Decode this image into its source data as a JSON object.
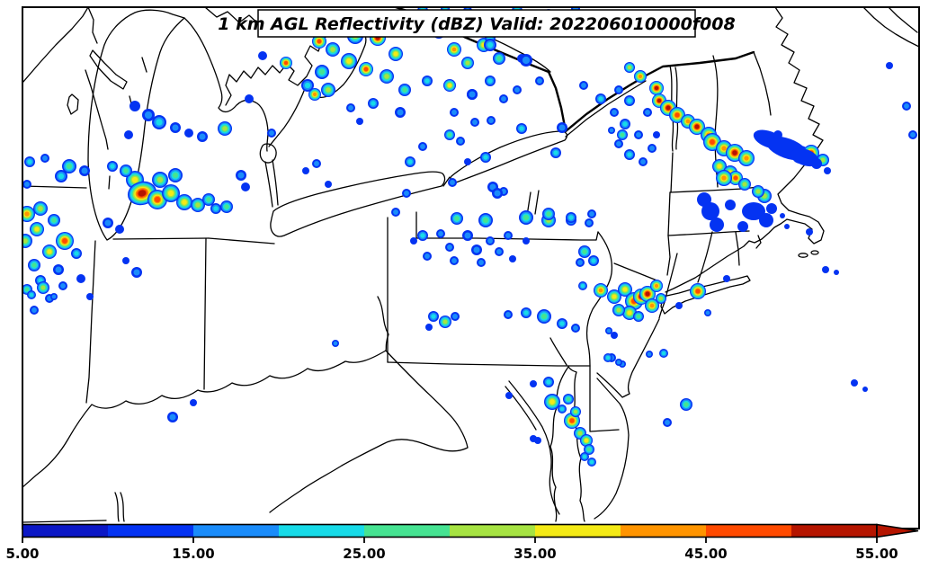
{
  "title": {
    "text": "1 km AGL Reflectivity (dBZ) Valid: 202206010000f008"
  },
  "colorbar": {
    "quantity": "Reflectivity",
    "unit": "dBZ",
    "range_min": 5,
    "range_max": 55,
    "extend_max_arrow": true,
    "segment_step": 5,
    "levels": [
      {
        "value": 5,
        "color": "#0b17c6"
      },
      {
        "value": 10,
        "color": "#0433f2"
      },
      {
        "value": 15,
        "color": "#1a8cfa"
      },
      {
        "value": 20,
        "color": "#17dbe8"
      },
      {
        "value": 25,
        "color": "#46e392"
      },
      {
        "value": 30,
        "color": "#a6e342"
      },
      {
        "value": 35,
        "color": "#f4ea16"
      },
      {
        "value": 40,
        "color": "#ff9400"
      },
      {
        "value": 45,
        "color": "#ff4a00"
      },
      {
        "value": 50,
        "color": "#b51500"
      }
    ],
    "tick_values": [
      5,
      15,
      25,
      35,
      45,
      55
    ],
    "tick_labels": [
      "5.00",
      "15.00",
      "25.00",
      "35.00",
      "45.00",
      "55.00"
    ]
  },
  "radar": {
    "cells_format": "x_px, y_px, radius_px, max_dbz, optional_x_stretch, optional_rotation_deg",
    "cells": [
      [
        33,
        180,
        6,
        20
      ],
      [
        50,
        176,
        5,
        15
      ],
      [
        77,
        185,
        8,
        25
      ],
      [
        94,
        190,
        6,
        15
      ],
      [
        68,
        196,
        7,
        20
      ],
      [
        30,
        205,
        5,
        15
      ],
      [
        30,
        238,
        9,
        42
      ],
      [
        45,
        232,
        8,
        30
      ],
      [
        60,
        245,
        7,
        25
      ],
      [
        41,
        255,
        8,
        35
      ],
      [
        28,
        268,
        8,
        30
      ],
      [
        72,
        268,
        10,
        48
      ],
      [
        55,
        280,
        8,
        35
      ],
      [
        85,
        282,
        6,
        20
      ],
      [
        38,
        295,
        7,
        25
      ],
      [
        65,
        300,
        6,
        15
      ],
      [
        45,
        312,
        6,
        20
      ],
      [
        70,
        318,
        5,
        15
      ],
      [
        30,
        322,
        6,
        25
      ],
      [
        55,
        332,
        5,
        15
      ],
      [
        90,
        310,
        5,
        13
      ],
      [
        100,
        330,
        4,
        13
      ],
      [
        38,
        345,
        5,
        15
      ],
      [
        48,
        320,
        7,
        30
      ],
      [
        35,
        328,
        5,
        20
      ],
      [
        60,
        330,
        4,
        15
      ],
      [
        150,
        118,
        6,
        13
      ],
      [
        165,
        128,
        7,
        15
      ],
      [
        177,
        136,
        8,
        22
      ],
      [
        195,
        142,
        6,
        15
      ],
      [
        210,
        148,
        5,
        13
      ],
      [
        225,
        152,
        6,
        15
      ],
      [
        143,
        150,
        5,
        13
      ],
      [
        250,
        143,
        8,
        30
      ],
      [
        277,
        110,
        5,
        13
      ],
      [
        318,
        70,
        7,
        45
      ],
      [
        350,
        105,
        7,
        42
      ],
      [
        302,
        148,
        5,
        15
      ],
      [
        292,
        62,
        5,
        13
      ],
      [
        340,
        190,
        4,
        13
      ],
      [
        352,
        182,
        5,
        15
      ],
      [
        365,
        205,
        4,
        13
      ],
      [
        268,
        195,
        6,
        18
      ],
      [
        273,
        208,
        5,
        13
      ],
      [
        152,
        303,
        6,
        15
      ],
      [
        140,
        290,
        4,
        12
      ],
      [
        120,
        248,
        6,
        15
      ],
      [
        133,
        255,
        5,
        13
      ],
      [
        150,
        200,
        10,
        35
      ],
      [
        158,
        215,
        13,
        55,
        1.25,
        -15
      ],
      [
        175,
        222,
        11,
        45
      ],
      [
        190,
        215,
        10,
        38
      ],
      [
        205,
        225,
        9,
        35
      ],
      [
        178,
        200,
        9,
        30
      ],
      [
        195,
        195,
        8,
        25
      ],
      [
        220,
        228,
        8,
        32
      ],
      [
        232,
        222,
        7,
        25
      ],
      [
        140,
        190,
        7,
        25
      ],
      [
        125,
        185,
        6,
        20
      ],
      [
        240,
        232,
        6,
        20
      ],
      [
        252,
        230,
        7,
        28
      ],
      [
        355,
        46,
        8,
        48
      ],
      [
        345,
        25,
        7,
        30
      ],
      [
        362,
        18,
        6,
        25
      ],
      [
        378,
        30,
        8,
        35
      ],
      [
        395,
        40,
        9,
        30
      ],
      [
        370,
        55,
        8,
        30
      ],
      [
        388,
        68,
        9,
        35
      ],
      [
        358,
        80,
        8,
        25
      ],
      [
        342,
        95,
        7,
        20
      ],
      [
        365,
        100,
        8,
        30
      ],
      [
        407,
        77,
        8,
        46
      ],
      [
        420,
        42,
        9,
        50
      ],
      [
        440,
        60,
        8,
        35
      ],
      [
        452,
        28,
        7,
        30
      ],
      [
        470,
        18,
        8,
        35
      ],
      [
        488,
        35,
        8,
        30
      ],
      [
        505,
        55,
        8,
        40
      ],
      [
        520,
        70,
        7,
        30
      ],
      [
        538,
        50,
        8,
        35
      ],
      [
        555,
        65,
        7,
        25
      ],
      [
        430,
        85,
        8,
        30
      ],
      [
        450,
        100,
        7,
        25
      ],
      [
        475,
        90,
        6,
        20
      ],
      [
        500,
        95,
        7,
        38
      ],
      [
        525,
        105,
        6,
        20
      ],
      [
        445,
        125,
        6,
        15
      ],
      [
        415,
        115,
        6,
        20
      ],
      [
        505,
        125,
        5,
        15
      ],
      [
        545,
        90,
        6,
        20
      ],
      [
        560,
        110,
        5,
        15
      ],
      [
        390,
        120,
        5,
        15
      ],
      [
        400,
        135,
        4,
        13
      ],
      [
        470,
        12,
        6,
        25
      ],
      [
        495,
        10,
        5,
        20
      ],
      [
        520,
        12,
        5,
        15
      ],
      [
        545,
        42,
        6,
        20
      ],
      [
        575,
        12,
        6,
        25
      ],
      [
        610,
        15,
        5,
        20
      ],
      [
        640,
        10,
        5,
        15
      ],
      [
        580,
        65,
        5,
        13
      ],
      [
        600,
        90,
        5,
        15
      ],
      [
        500,
        150,
        6,
        25
      ],
      [
        512,
        157,
        5,
        15
      ],
      [
        546,
        134,
        5,
        15
      ],
      [
        503,
        203,
        5,
        15
      ],
      [
        452,
        215,
        5,
        18
      ],
      [
        456,
        180,
        6,
        22
      ],
      [
        470,
        163,
        5,
        18
      ],
      [
        540,
        175,
        6,
        20
      ],
      [
        520,
        180,
        4,
        13
      ],
      [
        548,
        208,
        6,
        18
      ],
      [
        560,
        213,
        5,
        15
      ],
      [
        440,
        236,
        5,
        15
      ],
      [
        508,
        243,
        7,
        25
      ],
      [
        540,
        245,
        8,
        28
      ],
      [
        585,
        242,
        8,
        28
      ],
      [
        610,
        245,
        8,
        30
      ],
      [
        635,
        245,
        6,
        20
      ],
      [
        655,
        248,
        5,
        18
      ],
      [
        470,
        262,
        6,
        20
      ],
      [
        490,
        260,
        5,
        15
      ],
      [
        520,
        262,
        6,
        18
      ],
      [
        545,
        268,
        5,
        15
      ],
      [
        565,
        262,
        5,
        15
      ],
      [
        585,
        268,
        4,
        13
      ],
      [
        500,
        275,
        5,
        15
      ],
      [
        530,
        278,
        6,
        18
      ],
      [
        555,
        280,
        5,
        15
      ],
      [
        460,
        268,
        4,
        13
      ],
      [
        475,
        285,
        5,
        15
      ],
      [
        505,
        290,
        5,
        18
      ],
      [
        535,
        292,
        5,
        15
      ],
      [
        570,
        288,
        4,
        13
      ],
      [
        585,
        67,
        7,
        18
      ],
      [
        545,
        50,
        7,
        20
      ],
      [
        575,
        100,
        5,
        15
      ],
      [
        525,
        105,
        6,
        18
      ],
      [
        528,
        136,
        5,
        15
      ],
      [
        580,
        143,
        6,
        20
      ],
      [
        618,
        170,
        6,
        22
      ],
      [
        553,
        215,
        6,
        15
      ],
      [
        610,
        238,
        7,
        25
      ],
      [
        635,
        242,
        6,
        20
      ],
      [
        658,
        238,
        5,
        18
      ],
      [
        649,
        95,
        5,
        15
      ],
      [
        668,
        110,
        6,
        20
      ],
      [
        625,
        142,
        6,
        18
      ],
      [
        700,
        75,
        6,
        30
      ],
      [
        712,
        85,
        7,
        40
      ],
      [
        730,
        98,
        8,
        50
      ],
      [
        733,
        112,
        8,
        52
      ],
      [
        743,
        120,
        9,
        50
      ],
      [
        753,
        128,
        9,
        48
      ],
      [
        765,
        135,
        8,
        40
      ],
      [
        775,
        141,
        9,
        50
      ],
      [
        788,
        150,
        9,
        42
      ],
      [
        792,
        158,
        10,
        48
      ],
      [
        805,
        165,
        9,
        40
      ],
      [
        817,
        170,
        10,
        50
      ],
      [
        830,
        176,
        9,
        42
      ],
      [
        890,
        172,
        10,
        45
      ],
      [
        902,
        170,
        9,
        48
      ],
      [
        915,
        178,
        7,
        30
      ],
      [
        800,
        185,
        8,
        35
      ],
      [
        812,
        192,
        8,
        38
      ],
      [
        818,
        198,
        8,
        45
      ],
      [
        828,
        205,
        7,
        30
      ],
      [
        805,
        198,
        9,
        42
      ],
      [
        850,
        218,
        8,
        32
      ],
      [
        688,
        100,
        5,
        18
      ],
      [
        700,
        112,
        6,
        20
      ],
      [
        683,
        125,
        5,
        15
      ],
      [
        695,
        138,
        6,
        22
      ],
      [
        710,
        150,
        5,
        18
      ],
      [
        688,
        160,
        5,
        15
      ],
      [
        700,
        172,
        6,
        20
      ],
      [
        715,
        180,
        5,
        15
      ],
      [
        725,
        165,
        5,
        18
      ],
      [
        730,
        150,
        4,
        13
      ],
      [
        720,
        125,
        5,
        15
      ],
      [
        680,
        145,
        4,
        15
      ],
      [
        692,
        150,
        6,
        25
      ],
      [
        855,
        155,
        9,
        13,
        2,
        20
      ],
      [
        875,
        165,
        11,
        13,
        2.2,
        20
      ],
      [
        895,
        175,
        9,
        13,
        1.8,
        20
      ],
      [
        908,
        182,
        6,
        13
      ],
      [
        865,
        150,
        5,
        13
      ],
      [
        920,
        190,
        4,
        13
      ],
      [
        783,
        222,
        8,
        13
      ],
      [
        790,
        235,
        10,
        13
      ],
      [
        797,
        250,
        8,
        13
      ],
      [
        812,
        228,
        6,
        13
      ],
      [
        838,
        235,
        10,
        13,
        1.3,
        0
      ],
      [
        852,
        245,
        8,
        13
      ],
      [
        858,
        232,
        6,
        13
      ],
      [
        826,
        252,
        6,
        13
      ],
      [
        870,
        240,
        3,
        13
      ],
      [
        875,
        252,
        3,
        13
      ],
      [
        843,
        213,
        7,
        30
      ],
      [
        918,
        300,
        4,
        13
      ],
      [
        930,
        303,
        3,
        13
      ],
      [
        900,
        258,
        4,
        13
      ],
      [
        776,
        324,
        9,
        45
      ],
      [
        755,
        340,
        4,
        13
      ],
      [
        787,
        348,
        4,
        15
      ],
      [
        808,
        310,
        4,
        13
      ],
      [
        668,
        323,
        8,
        40
      ],
      [
        683,
        330,
        8,
        35
      ],
      [
        695,
        322,
        8,
        38
      ],
      [
        705,
        335,
        10,
        45
      ],
      [
        713,
        330,
        9,
        52
      ],
      [
        720,
        327,
        9,
        50
      ],
      [
        725,
        340,
        8,
        40
      ],
      [
        700,
        348,
        8,
        35
      ],
      [
        688,
        345,
        7,
        30
      ],
      [
        710,
        352,
        6,
        28
      ],
      [
        730,
        318,
        7,
        42
      ],
      [
        735,
        332,
        6,
        30
      ],
      [
        648,
        318,
        5,
        20
      ],
      [
        677,
        368,
        4,
        15
      ],
      [
        683,
        373,
        4,
        13
      ],
      [
        680,
        398,
        5,
        18
      ],
      [
        692,
        405,
        4,
        15
      ],
      [
        722,
        394,
        4,
        15
      ],
      [
        738,
        393,
        5,
        20
      ],
      [
        763,
        450,
        7,
        25
      ],
      [
        742,
        470,
        5,
        15
      ],
      [
        950,
        426,
        4,
        13
      ],
      [
        962,
        433,
        3,
        13
      ],
      [
        482,
        352,
        6,
        22
      ],
      [
        495,
        358,
        7,
        30
      ],
      [
        506,
        352,
        5,
        18
      ],
      [
        477,
        364,
        4,
        13
      ],
      [
        585,
        348,
        6,
        20
      ],
      [
        605,
        352,
        8,
        28
      ],
      [
        625,
        360,
        6,
        22
      ],
      [
        640,
        365,
        5,
        15
      ],
      [
        565,
        350,
        5,
        15
      ],
      [
        650,
        280,
        7,
        28
      ],
      [
        660,
        290,
        6,
        22
      ],
      [
        645,
        292,
        5,
        15
      ],
      [
        614,
        447,
        9,
        38
      ],
      [
        632,
        444,
        6,
        25
      ],
      [
        636,
        468,
        9,
        46
      ],
      [
        645,
        482,
        7,
        32
      ],
      [
        652,
        490,
        7,
        35
      ],
      [
        655,
        500,
        6,
        28
      ],
      [
        650,
        508,
        5,
        22
      ],
      [
        658,
        514,
        5,
        20
      ],
      [
        640,
        458,
        6,
        30
      ],
      [
        625,
        455,
        5,
        20
      ],
      [
        593,
        427,
        4,
        13
      ],
      [
        566,
        440,
        4,
        13
      ],
      [
        598,
        490,
        4,
        13
      ],
      [
        593,
        488,
        4,
        13
      ],
      [
        610,
        425,
        6,
        20
      ],
      [
        676,
        398,
        5,
        20
      ],
      [
        688,
        403,
        4,
        15
      ],
      [
        192,
        464,
        6,
        18
      ],
      [
        215,
        448,
        4,
        13
      ],
      [
        373,
        382,
        4,
        15
      ],
      [
        1015,
        150,
        5,
        18
      ],
      [
        1008,
        118,
        5,
        15
      ],
      [
        989,
        73,
        4,
        13
      ]
    ]
  }
}
